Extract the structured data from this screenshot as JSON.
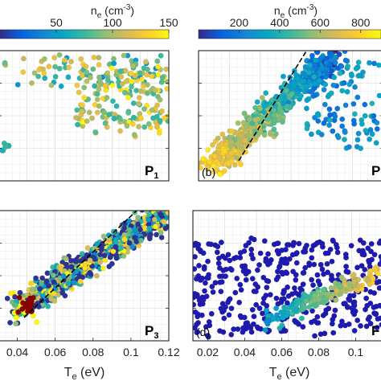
{
  "colormap": [
    "#352a87",
    "#0363e1",
    "#1485d4",
    "#06a7c6",
    "#38b99e",
    "#92bf73",
    "#d9ba56",
    "#fcce2e",
    "#f9fb0e"
  ],
  "point_colors": {
    "dark_blue": "#1f1ab0",
    "dark_red": "#8b0000"
  },
  "panels": {
    "p1": {
      "name_main": "P",
      "name_sub": "1"
    },
    "b": {
      "letter": "(b)",
      "name_main": "P",
      "name_sub": ""
    },
    "p3": {
      "name_main": "P",
      "name_sub": "3"
    },
    "d": {
      "letter": "(d)",
      "name_main": "F",
      "name_sub": ""
    }
  },
  "axis_labels": {
    "left_x_main": "T",
    "left_x_sub": "e",
    "left_x_unit": " (eV)",
    "right_x_main": "T",
    "right_x_sub": "e",
    "right_x_unit": " (eV)"
  },
  "chart_data": [
    {
      "type": "scatter",
      "panel": "top-left",
      "label": "P1",
      "colorbar": {
        "title_main": "n",
        "title_sub": "e",
        "title_unit": " (cm",
        "title_sup": "-3",
        "title_close": ")",
        "range": [
          0,
          150
        ],
        "ticks": [
          "50",
          "100",
          "150"
        ],
        "tick_values": [
          50,
          100,
          150
        ]
      },
      "points": []
    },
    {
      "type": "scatter",
      "panel": "top-right",
      "label": "(b)",
      "colorbar": {
        "title_main": "n",
        "title_sub": "e",
        "title_unit": " (cm",
        "title_sup": "-3",
        "title_close": ")",
        "range": [
          0,
          900
        ],
        "ticks": [
          "200",
          "400",
          "600",
          "800"
        ],
        "tick_values": [
          200,
          400,
          600,
          800
        ]
      },
      "fit_line": true,
      "points": []
    },
    {
      "type": "scatter",
      "panel": "bottom-left",
      "label": "P3",
      "xlim": [
        0.03,
        0.12
      ],
      "x_ticks": [
        "0.04",
        "0.06",
        "0.08",
        "0.1",
        "0.12"
      ],
      "x_tick_values": [
        0.04,
        0.06,
        0.08,
        0.1,
        0.12
      ],
      "fit_line": true,
      "points": []
    },
    {
      "type": "scatter",
      "panel": "bottom-right",
      "label": "(d)",
      "xlim": [
        0.012,
        0.115
      ],
      "x_ticks": [
        "0.02",
        "0.04",
        "0.06",
        "0.08",
        "0.1"
      ],
      "x_tick_values": [
        0.02,
        0.04,
        0.06,
        0.08,
        0.1
      ],
      "points": []
    }
  ]
}
